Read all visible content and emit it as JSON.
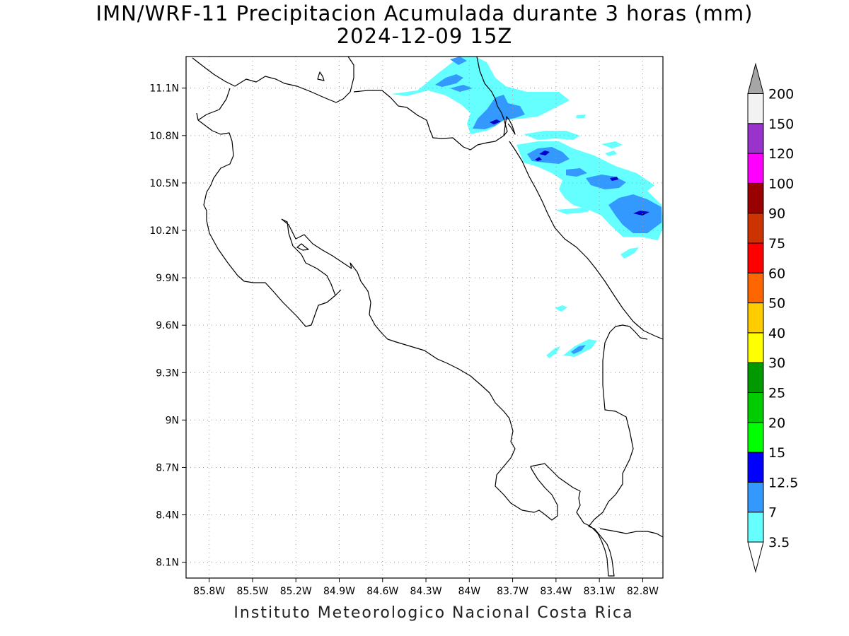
{
  "title": {
    "line1": "IMN/WRF-11 Precipitacion Acumulada durante 3 horas (mm)",
    "line2": "2024-12-09 15Z"
  },
  "footer": "Instituto Meteorologico Nacional Costa Rica",
  "map": {
    "lon_range": [
      -85.96,
      -82.66
    ],
    "lat_range": [
      8.0,
      11.3
    ],
    "lon_ticks": [
      {
        "value": -85.8,
        "label": "85.8W"
      },
      {
        "value": -85.5,
        "label": "85.5W"
      },
      {
        "value": -85.2,
        "label": "85.2W"
      },
      {
        "value": -84.9,
        "label": "84.9W"
      },
      {
        "value": -84.6,
        "label": "84.6W"
      },
      {
        "value": -84.3,
        "label": "84.3W"
      },
      {
        "value": -84.0,
        "label": "84W"
      },
      {
        "value": -83.7,
        "label": "83.7W"
      },
      {
        "value": -83.4,
        "label": "83.4W"
      },
      {
        "value": -83.1,
        "label": "83.1W"
      },
      {
        "value": -82.8,
        "label": "82.8W"
      }
    ],
    "lat_ticks": [
      {
        "value": 11.1,
        "label": "11.1N"
      },
      {
        "value": 10.8,
        "label": "10.8N"
      },
      {
        "value": 10.5,
        "label": "10.5N"
      },
      {
        "value": 10.2,
        "label": "10.2N"
      },
      {
        "value": 9.9,
        "label": "9.9N"
      },
      {
        "value": 9.6,
        "label": "9.6N"
      },
      {
        "value": 9.3,
        "label": "9.3N"
      },
      {
        "value": 9.0,
        "label": "9N"
      },
      {
        "value": 8.7,
        "label": "8.7N"
      },
      {
        "value": 8.4,
        "label": "8.4N"
      },
      {
        "value": 8.1,
        "label": "8.1N"
      }
    ],
    "grid": true
  },
  "colorbar": {
    "levels": [
      "3.5",
      "7",
      "12.5",
      "15",
      "20",
      "25",
      "30",
      "40",
      "50",
      "60",
      "75",
      "90",
      "100",
      "120",
      "150",
      "200"
    ],
    "colors": [
      "#66ffff",
      "#3399ff",
      "#0000ff",
      "#00ff00",
      "#00cc00",
      "#009900",
      "#ffff00",
      "#ffcc00",
      "#ff6600",
      "#ff0000",
      "#cc3300",
      "#990000",
      "#ff00ff",
      "#9933cc",
      "#f2f2f2",
      "#a6a6a6"
    ],
    "under_color": "#ffffff",
    "over_color": "#a6a6a6"
  }
}
